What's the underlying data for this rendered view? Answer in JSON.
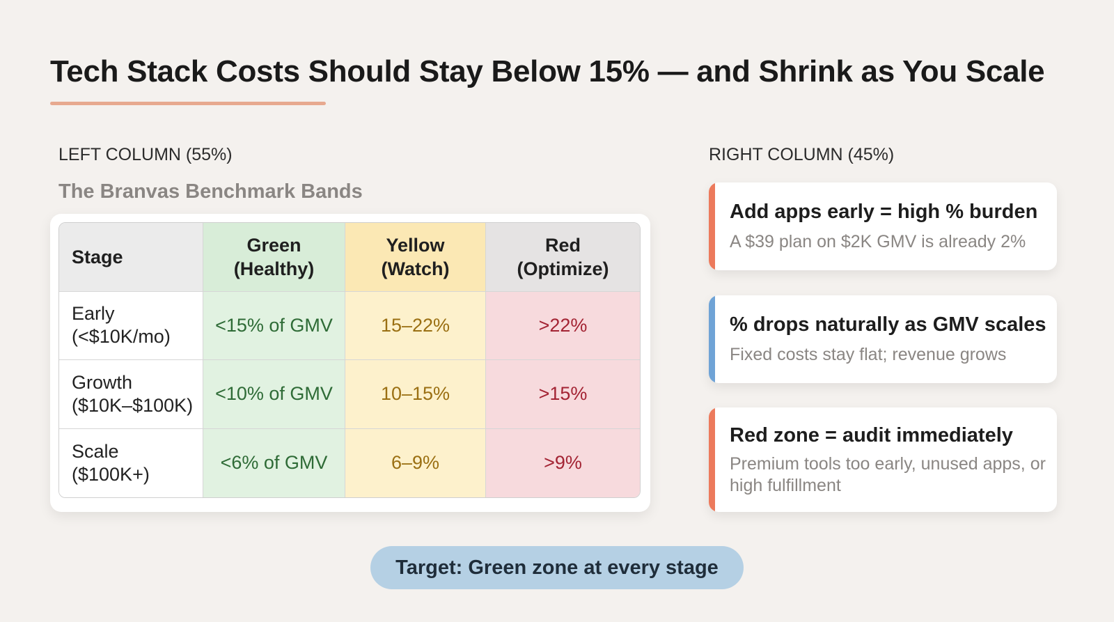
{
  "title": "Tech Stack Costs Should Stay Below 15% — and Shrink as You Scale",
  "colors": {
    "background": "#f4f1ee",
    "underline": "#e7a98f",
    "green": "#d8edd8",
    "yellow": "#fbe8b4",
    "red": "#f7dadd",
    "accent_orange": "#ec7a5c",
    "accent_blue": "#6fa3d6",
    "pill": "#b5d0e4"
  },
  "left": {
    "column_label": "LEFT COLUMN (55%)",
    "section_title": "The Branvas Benchmark Bands",
    "table": {
      "headers": {
        "stage": "Stage",
        "green_line1": "Green",
        "green_line2": "(Healthy)",
        "yellow_line1": "Yellow",
        "yellow_line2": "(Watch)",
        "red_line1": "Red",
        "red_line2": "(Optimize)"
      },
      "rows": [
        {
          "stage_line1": "Early",
          "stage_line2": "(<$10K/mo)",
          "green": "<15% of GMV",
          "yellow": "15–22%",
          "red": ">22%"
        },
        {
          "stage_line1": "Growth",
          "stage_line2": "($10K–$100K)",
          "green": "<10% of GMV",
          "yellow": "10–15%",
          "red": ">15%"
        },
        {
          "stage_line1": "Scale",
          "stage_line2": "($100K+)",
          "green": "<6% of GMV",
          "yellow": "6–9%",
          "red": ">9%"
        }
      ]
    }
  },
  "right": {
    "column_label": "RIGHT COLUMN (45%)",
    "callouts": [
      {
        "heading": "Add apps early = high % burden",
        "body": "A $39 plan on $2K GMV is already 2%",
        "accent": "#ec7a5c"
      },
      {
        "heading": "% drops naturally as GMV scales",
        "body": "Fixed costs stay flat; revenue grows",
        "accent": "#6fa3d6"
      },
      {
        "heading": "Red zone = audit immediately",
        "body": "Premium tools too early, unused apps, or high fulfillment",
        "accent": "#ec7a5c"
      }
    ]
  },
  "target": "Target: Green zone at every stage"
}
